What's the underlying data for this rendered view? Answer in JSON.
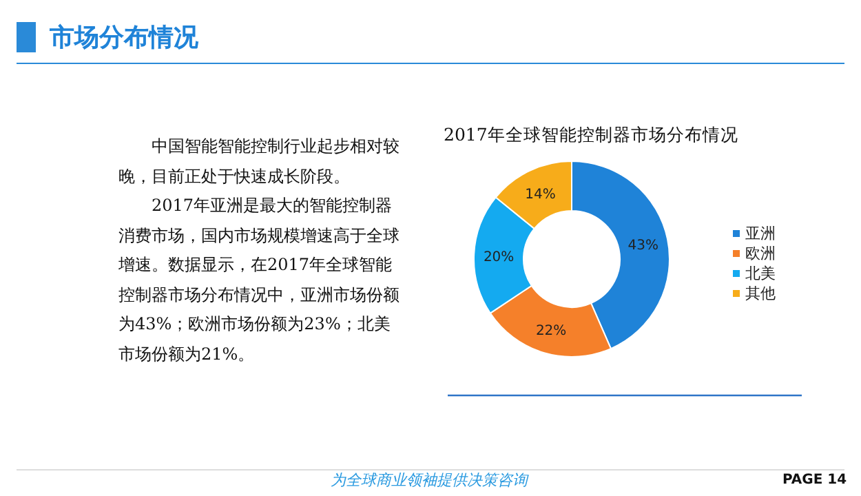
{
  "chart_data": {
    "type": "donut",
    "title": "2017年全球智能控制器市场分布情况",
    "categories": [
      "亚洲",
      "欧洲",
      "北美",
      "其他"
    ],
    "values": [
      43,
      22,
      20,
      14
    ],
    "value_labels": [
      "43%",
      "22%",
      "20%",
      "14%"
    ],
    "colors": [
      "#1f83d8",
      "#f5802a",
      "#14aaf0",
      "#f7ac1a"
    ],
    "legend": "right",
    "annotations": [
      "市场分布情况",
      "中国智能智能控制行业起步相对较晚，目前正处于快速成长阶段。",
      "2017年亚洲是最大的智能控制器消费市场，国内市场规模增速高于全球增速。数据显示，在2017年全球智能控制器市场分布情况中，亚洲市场份额为43%；欧洲市场份额为23%；北美市场份额为21%。",
      "为全球商业领袖提供决策咨询",
      "PAGE 14"
    ]
  }
}
